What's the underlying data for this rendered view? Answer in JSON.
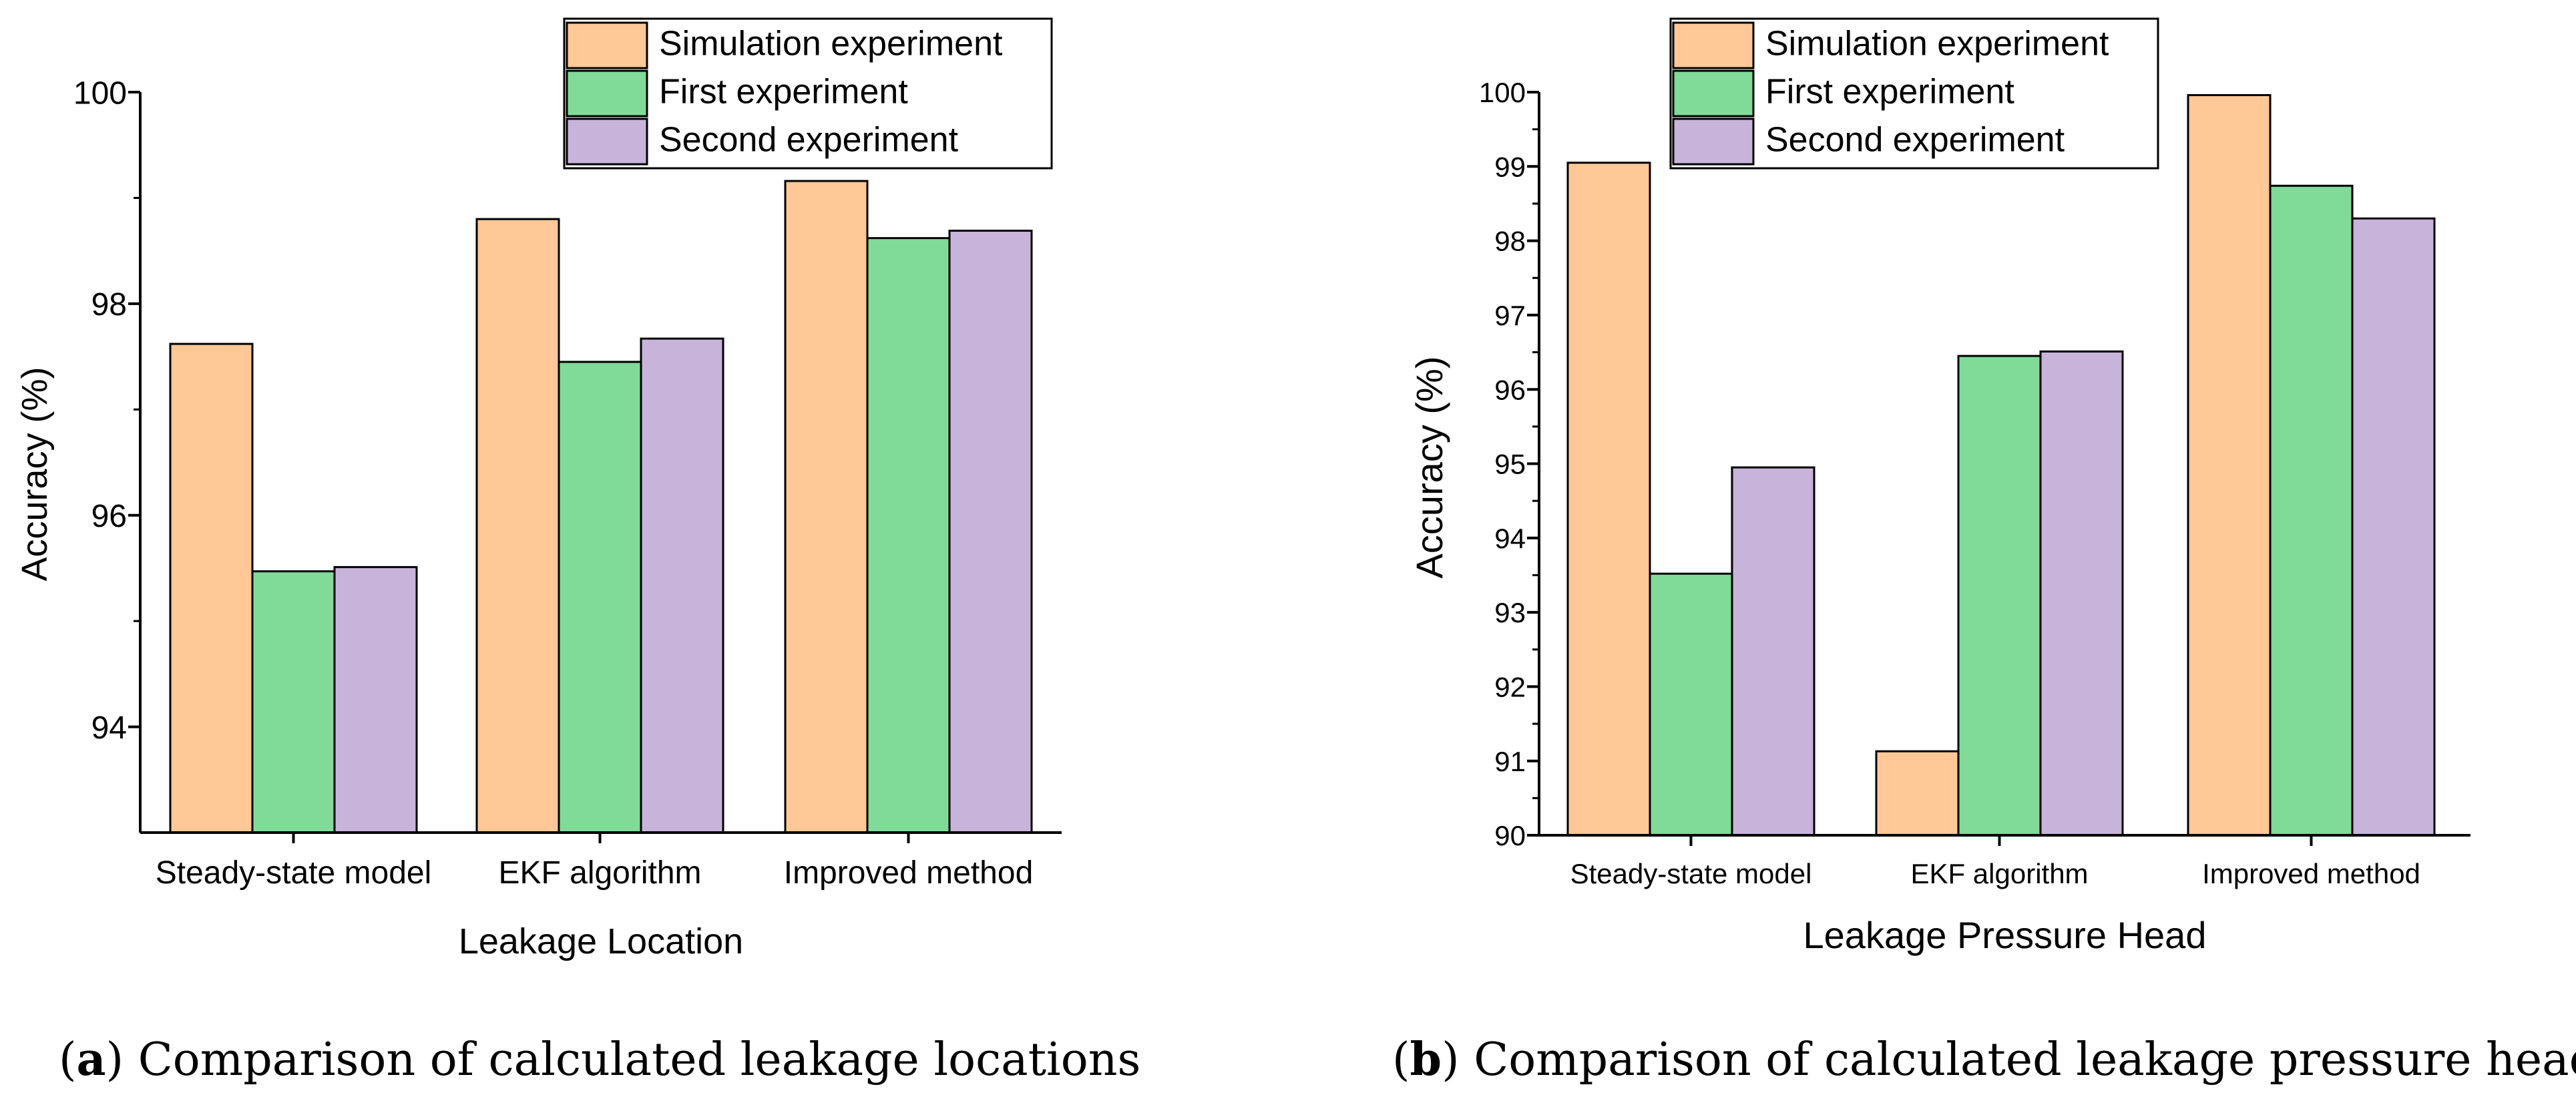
{
  "colors": {
    "simulation": "#FFC896",
    "first": "#80DA98",
    "second": "#C8B4DA",
    "axis": "#000000"
  },
  "chart_data": [
    {
      "type": "bar",
      "xlabel": "Leakage Location",
      "ylabel": "Accuracy (%)",
      "ylim": [
        93,
        100
      ],
      "yticks": [
        94,
        96,
        98,
        100
      ],
      "categories": [
        "Steady-state model",
        "EKF algorithm",
        "Improved method"
      ],
      "series": [
        {
          "name": "Simulation experiment",
          "color_key": "simulation",
          "values": [
            97.62,
            98.8,
            99.16
          ]
        },
        {
          "name": "First experiment",
          "color_key": "first",
          "values": [
            95.47,
            97.45,
            98.62
          ]
        },
        {
          "name": "Second experiment",
          "color_key": "second",
          "values": [
            95.51,
            97.67,
            98.69
          ]
        }
      ],
      "legend": "top-right",
      "caption_label": "a",
      "caption_text": " Comparison of calculated leakage locations"
    },
    {
      "type": "bar",
      "xlabel": "Leakage Pressure Head",
      "ylabel": "Accuracy (%)",
      "ylim": [
        90,
        100
      ],
      "yticks": [
        90,
        91,
        92,
        93,
        94,
        95,
        96,
        97,
        98,
        99,
        100
      ],
      "categories": [
        "Steady-state model",
        "EKF algorithm",
        "Improved method"
      ],
      "series": [
        {
          "name": "Simulation experiment",
          "color_key": "simulation",
          "values": [
            99.05,
            91.13,
            99.96
          ]
        },
        {
          "name": "First experiment",
          "color_key": "first",
          "values": [
            93.52,
            96.45,
            98.74
          ]
        },
        {
          "name": "Second experiment",
          "color_key": "second",
          "values": [
            94.95,
            96.51,
            98.3
          ]
        }
      ],
      "legend": "top-right",
      "caption_label": "b",
      "caption_text": " Comparison of calculated leakage pressure heads"
    }
  ]
}
